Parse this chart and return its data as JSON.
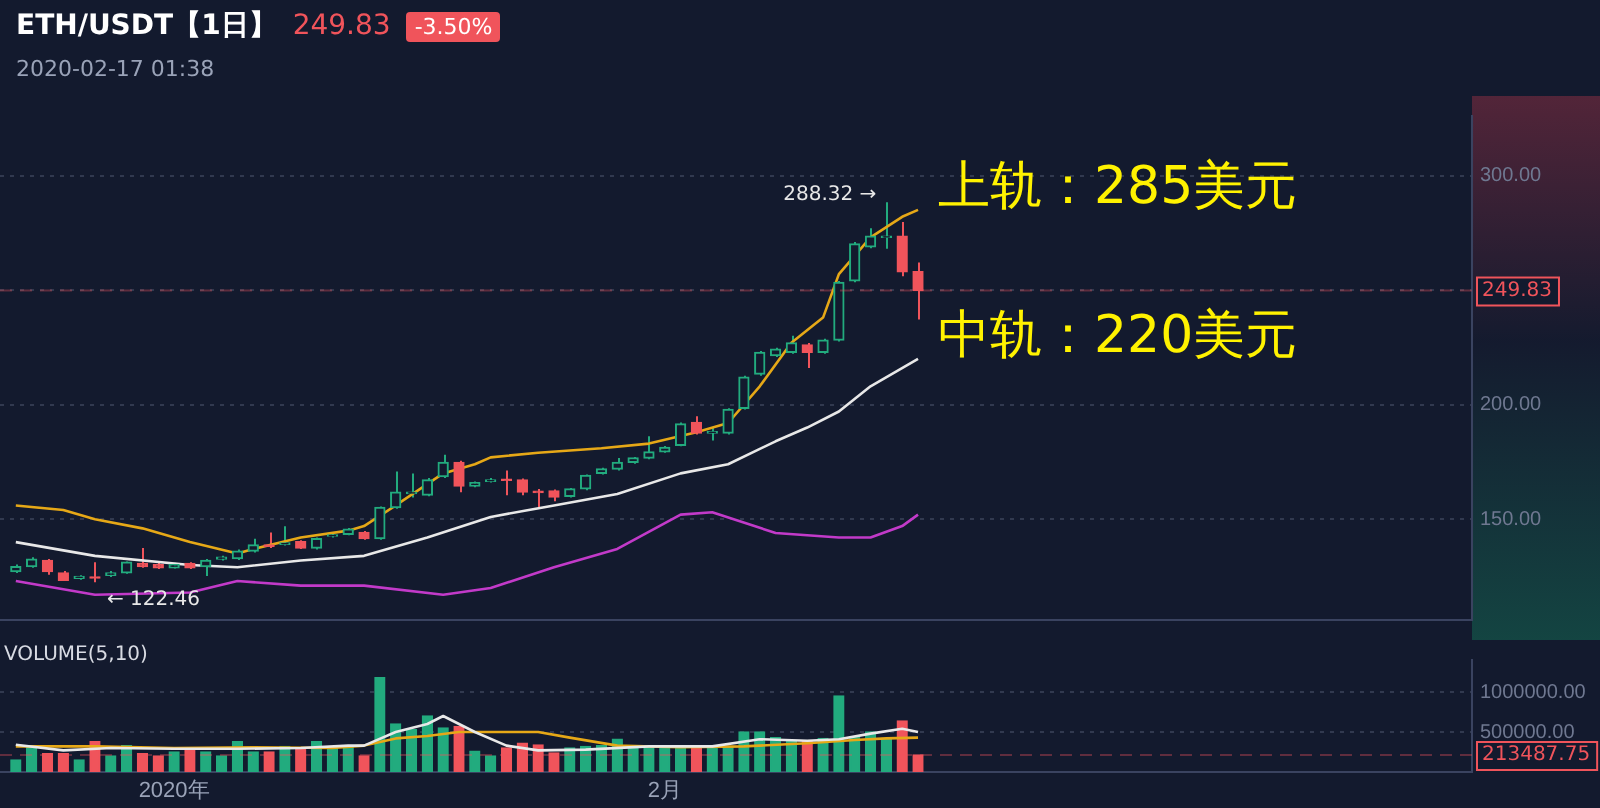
{
  "chart_data": [
    {
      "type": "candlestick",
      "title": "ETH/USDT【1日】",
      "subtitle": "2020-02-17 01:38",
      "x": [
        "2019-12-22",
        "2019-12-23",
        "2019-12-24",
        "2019-12-25",
        "2019-12-26",
        "2019-12-27",
        "2019-12-28",
        "2019-12-29",
        "2019-12-30",
        "2019-12-31",
        "2020-01-01",
        "2020-01-02",
        "2020-01-03",
        "2020-01-04",
        "2020-01-05",
        "2020-01-06",
        "2020-01-07",
        "2020-01-08",
        "2020-01-09",
        "2020-01-10",
        "2020-01-11",
        "2020-01-12",
        "2020-01-13",
        "2020-01-14",
        "2020-01-15",
        "2020-01-16",
        "2020-01-17",
        "2020-01-18",
        "2020-01-19",
        "2020-01-20",
        "2020-01-21",
        "2020-01-22",
        "2020-01-23",
        "2020-01-24",
        "2020-01-25",
        "2020-01-26",
        "2020-01-27",
        "2020-01-28",
        "2020-01-29",
        "2020-01-30",
        "2020-01-31",
        "2020-02-01",
        "2020-02-02",
        "2020-02-03",
        "2020-02-04",
        "2020-02-05",
        "2020-02-06",
        "2020-02-07",
        "2020-02-08",
        "2020-02-09",
        "2020-02-10",
        "2020-02-11",
        "2020-02-12",
        "2020-02-13",
        "2020-02-14",
        "2020-02-15",
        "2020-02-16",
        "2020-02-17"
      ],
      "ohlc": [
        [
          127.1,
          130.2,
          126.5,
          129.3
        ],
        [
          129.3,
          133.4,
          128.8,
          132.6
        ],
        [
          132,
          132.6,
          125.8,
          127.1
        ],
        [
          126.6,
          127.4,
          123,
          123.3
        ],
        [
          124.2,
          125.5,
          123.6,
          125
        ],
        [
          124.8,
          131.2,
          122.46,
          124.3
        ],
        [
          125.5,
          127.4,
          124.8,
          126.6
        ],
        [
          126.6,
          131.5,
          126.2,
          131.2
        ],
        [
          130.7,
          137.4,
          128.8,
          129.3
        ],
        [
          130.2,
          131,
          128.3,
          128.8
        ],
        [
          128.8,
          131,
          128.5,
          130.2
        ],
        [
          130.7,
          131.2,
          128.3,
          128.8
        ],
        [
          129.3,
          132.6,
          125.2,
          132
        ],
        [
          132.6,
          134,
          132,
          133.4
        ],
        [
          132.8,
          136.8,
          132.2,
          136.1
        ],
        [
          136.1,
          141.5,
          135.5,
          138.8
        ],
        [
          138.8,
          144.2,
          137.4,
          138.2
        ],
        [
          139,
          146.9,
          138.5,
          139.6
        ],
        [
          140.2,
          140.8,
          137,
          137.4
        ],
        [
          137.4,
          142,
          136.8,
          141.5
        ],
        [
          142.6,
          144,
          142,
          143.1
        ],
        [
          143.4,
          146.2,
          143,
          145.6
        ],
        [
          144.2,
          144.8,
          141,
          141.5
        ],
        [
          141.5,
          155.5,
          141,
          155.1
        ],
        [
          155.1,
          170.8,
          154.6,
          161.8
        ],
        [
          161.2,
          170,
          159.5,
          161.8
        ],
        [
          160.5,
          168,
          160,
          167.2
        ],
        [
          168.6,
          178.1,
          168,
          174.8
        ],
        [
          174.8,
          175.5,
          161.8,
          164.5
        ],
        [
          164.5,
          166.5,
          164,
          165.9
        ],
        [
          166.5,
          168,
          166,
          167.2
        ],
        [
          167.5,
          171.3,
          160.5,
          167
        ],
        [
          167.2,
          167.8,
          160.5,
          161.8
        ],
        [
          162.2,
          163.2,
          154.5,
          161.6
        ],
        [
          162.4,
          163,
          157.8,
          159.7
        ],
        [
          160,
          163.6,
          159.5,
          163.2
        ],
        [
          163.2,
          169.5,
          162.6,
          169.1
        ],
        [
          170,
          172.5,
          169.5,
          171.9
        ],
        [
          171.9,
          176.7,
          171.3,
          174.8
        ],
        [
          174.8,
          177.2,
          174.2,
          176.7
        ],
        [
          176.7,
          186.2,
          176.2,
          179.4
        ],
        [
          179.4,
          182,
          179,
          181.3
        ],
        [
          182.2,
          192.2,
          181.8,
          191.6
        ],
        [
          192.2,
          194.9,
          187,
          187.6
        ],
        [
          187.6,
          190.3,
          184.3,
          188.2
        ],
        [
          187.6,
          198.4,
          187,
          197.9
        ],
        [
          198.4,
          212.6,
          197.9,
          212
        ],
        [
          213.3,
          223.4,
          212.6,
          222.8
        ],
        [
          221.4,
          224.8,
          220.8,
          224.2
        ],
        [
          222.8,
          230.1,
          222.2,
          226.9
        ],
        [
          226.1,
          226.9,
          216,
          222.8
        ],
        [
          222.8,
          228.8,
          222.2,
          228.2
        ],
        [
          228.2,
          254,
          227.6,
          253.4
        ],
        [
          254,
          271,
          253.4,
          270.2
        ],
        [
          268.9,
          277,
          268.3,
          273.5
        ],
        [
          273,
          288.32,
          268,
          273.5
        ],
        [
          273.5,
          279.7,
          256.1,
          258
        ],
        [
          258,
          262.1,
          237.2,
          249.83
        ]
      ],
      "series": [
        {
          "type": "line",
          "color": "#e6a817",
          "x": [
            "2019-12-22",
            "2019-12-25",
            "2019-12-27",
            "2019-12-30",
            "2020-01-02",
            "2020-01-05",
            "2020-01-06",
            "2020-01-09",
            "2020-01-12",
            "2020-01-13",
            "2020-01-15",
            "2020-01-18",
            "2020-01-20",
            "2020-01-21",
            "2020-01-24",
            "2020-01-28",
            "2020-01-31",
            "2020-02-03",
            "2020-02-05",
            "2020-02-07",
            "2020-02-09",
            "2020-02-11",
            "2020-02-12",
            "2020-02-14",
            "2020-02-16",
            "2020-02-17"
          ],
          "values": [
            156,
            154,
            150,
            146,
            140,
            135,
            137,
            142,
            145,
            147,
            156,
            170,
            174,
            177,
            179,
            181,
            183,
            188,
            192,
            208,
            227,
            238,
            257,
            273,
            282,
            285
          ]
        },
        {
          "type": "line",
          "color": "#e8e8e8",
          "x": [
            "2019-12-22",
            "2019-12-27",
            "2020-01-02",
            "2020-01-05",
            "2020-01-09",
            "2020-01-13",
            "2020-01-17",
            "2020-01-21",
            "2020-01-25",
            "2020-01-29",
            "2020-02-02",
            "2020-02-05",
            "2020-02-08",
            "2020-02-10",
            "2020-02-12",
            "2020-02-14",
            "2020-02-17"
          ],
          "values": [
            140,
            134,
            130,
            129,
            132,
            134,
            142,
            151,
            156,
            161,
            170,
            174,
            184,
            190,
            197,
            208,
            220
          ]
        },
        {
          "type": "line",
          "color": "#c23ac9",
          "x": [
            "2019-12-22",
            "2019-12-27",
            "2020-01-02",
            "2020-01-05",
            "2020-01-09",
            "2020-01-13",
            "2020-01-18",
            "2020-01-21",
            "2020-01-25",
            "2020-01-29",
            "2020-02-02",
            "2020-02-04",
            "2020-02-08",
            "2020-02-12",
            "2020-02-14",
            "2020-02-16",
            "2020-02-17"
          ],
          "values": [
            123,
            117,
            118,
            123,
            121,
            121,
            117,
            120,
            129,
            137,
            152,
            153,
            144,
            142,
            142,
            147,
            152
          ]
        }
      ],
      "xlim": [
        "2019-12-21",
        "2020-03-23"
      ],
      "ylim": [
        106,
        326
      ],
      "yticks": [
        {
          "value": 150,
          "label": "150.00"
        },
        {
          "value": 200,
          "label": "200.00"
        },
        {
          "value": 250,
          "label": null
        },
        {
          "value": 300,
          "label": "300.00"
        }
      ],
      "grid": "y",
      "tick_labels": "y",
      "legend": false,
      "ref_lines": [
        {
          "axis": "y",
          "value": 249.83,
          "label": "249.83",
          "color": "#f0545b",
          "line_style": "dashed"
        }
      ],
      "annotations": [
        "249.83",
        "-3.50%",
        {
          "text": "上轨：285美元",
          "x": "2020-02-17",
          "y": 285
        },
        {
          "text": "中轨：220美元",
          "x": "2020-02-17",
          "y": 220
        },
        {
          "text": "288.32 →",
          "x": "2020-02-15",
          "y": 288.32
        },
        {
          "text": "← 122.46",
          "x": "2019-12-27",
          "y": 122.46
        }
      ]
    },
    {
      "type": "bar",
      "title": "VOLUME(5,10)",
      "x": [
        "2019-12-22",
        "2019-12-23",
        "2019-12-24",
        "2019-12-25",
        "2019-12-26",
        "2019-12-27",
        "2019-12-28",
        "2019-12-29",
        "2019-12-30",
        "2019-12-31",
        "2020-01-01",
        "2020-01-02",
        "2020-01-03",
        "2020-01-04",
        "2020-01-05",
        "2020-01-06",
        "2020-01-07",
        "2020-01-08",
        "2020-01-09",
        "2020-01-10",
        "2020-01-11",
        "2020-01-12",
        "2020-01-13",
        "2020-01-14",
        "2020-01-15",
        "2020-01-16",
        "2020-01-17",
        "2020-01-18",
        "2020-01-19",
        "2020-01-20",
        "2020-01-21",
        "2020-01-22",
        "2020-01-23",
        "2020-01-24",
        "2020-01-25",
        "2020-01-26",
        "2020-01-27",
        "2020-01-28",
        "2020-01-29",
        "2020-01-30",
        "2020-01-31",
        "2020-02-01",
        "2020-02-02",
        "2020-02-03",
        "2020-02-04",
        "2020-02-05",
        "2020-02-06",
        "2020-02-07",
        "2020-02-08",
        "2020-02-09",
        "2020-02-10",
        "2020-02-11",
        "2020-02-12",
        "2020-02-13",
        "2020-02-14",
        "2020-02-15",
        "2020-02-16",
        "2020-02-17"
      ],
      "series": [
        {
          "type": "bar",
          "values": [
            150000,
            330000,
            230000,
            230000,
            150000,
            380000,
            200000,
            330000,
            230000,
            200000,
            250000,
            290000,
            250000,
            200000,
            380000,
            250000,
            250000,
            320000,
            290000,
            380000,
            300000,
            320000,
            200000,
            1180000,
            600000,
            530000,
            700000,
            550000,
            570000,
            260000,
            200000,
            300000,
            360000,
            340000,
            240000,
            300000,
            320000,
            330000,
            410000,
            300000,
            300000,
            320000,
            330000,
            300000,
            330000,
            320000,
            500000,
            500000,
            430000,
            390000,
            390000,
            420000,
            950000,
            440000,
            500000,
            420000,
            640000,
            213487.75
          ],
          "colors": [
            "#22ab7e",
            "#22ab7e",
            "#f0545b",
            "#f0545b",
            "#22ab7e",
            "#f0545b",
            "#22ab7e",
            "#22ab7e",
            "#f0545b",
            "#f0545b",
            "#22ab7e",
            "#f0545b",
            "#22ab7e",
            "#22ab7e",
            "#22ab7e",
            "#22ab7e",
            "#f0545b",
            "#22ab7e",
            "#f0545b",
            "#22ab7e",
            "#22ab7e",
            "#22ab7e",
            "#f0545b",
            "#22ab7e",
            "#22ab7e",
            "#22ab7e",
            "#22ab7e",
            "#22ab7e",
            "#f0545b",
            "#22ab7e",
            "#22ab7e",
            "#f0545b",
            "#f0545b",
            "#f0545b",
            "#f0545b",
            "#22ab7e",
            "#22ab7e",
            "#22ab7e",
            "#22ab7e",
            "#22ab7e",
            "#22ab7e",
            "#22ab7e",
            "#22ab7e",
            "#f0545b",
            "#22ab7e",
            "#22ab7e",
            "#22ab7e",
            "#22ab7e",
            "#22ab7e",
            "#22ab7e",
            "#f0545b",
            "#22ab7e",
            "#22ab7e",
            "#22ab7e",
            "#22ab7e",
            "#22ab7e",
            "#f0545b",
            "#f0545b"
          ]
        },
        {
          "type": "line",
          "color": "#e8e8e8",
          "x": [
            "2019-12-22",
            "2019-12-25",
            "2019-12-28",
            "2020-01-01",
            "2020-01-05",
            "2020-01-09",
            "2020-01-12",
            "2020-01-13",
            "2020-01-15",
            "2020-01-17",
            "2020-01-18",
            "2020-01-20",
            "2020-01-22",
            "2020-01-24",
            "2020-01-27",
            "2020-01-31",
            "2020-02-04",
            "2020-02-07",
            "2020-02-10",
            "2020-02-12",
            "2020-02-14",
            "2020-02-16",
            "2020-02-17"
          ],
          "values": [
            340000,
            270000,
            300000,
            290000,
            290000,
            300000,
            330000,
            330000,
            500000,
            600000,
            700000,
            500000,
            330000,
            270000,
            280000,
            320000,
            320000,
            410000,
            390000,
            410000,
            480000,
            540000,
            500000
          ]
        },
        {
          "type": "line",
          "color": "#e6a817",
          "x": [
            "2019-12-22",
            "2019-12-27",
            "2020-01-01",
            "2020-01-06",
            "2020-01-11",
            "2020-01-13",
            "2020-01-15",
            "2020-01-17",
            "2020-01-19",
            "2020-01-22",
            "2020-01-24",
            "2020-01-26",
            "2020-01-29",
            "2020-02-02",
            "2020-02-06",
            "2020-02-10",
            "2020-02-13",
            "2020-02-15",
            "2020-02-17"
          ],
          "values": [
            320000,
            320000,
            300000,
            310000,
            300000,
            330000,
            420000,
            450000,
            500000,
            500000,
            500000,
            430000,
            330000,
            310000,
            320000,
            360000,
            400000,
            420000,
            430000
          ]
        }
      ],
      "xlim": [
        "2019-12-21",
        "2020-03-23"
      ],
      "xticks": [
        {
          "value": "2020-01-01",
          "label": "2020年"
        },
        {
          "value": "2020-02-01",
          "label": "2月"
        }
      ],
      "ylim": [
        0,
        1400000
      ],
      "yticks": [
        {
          "value": 500000,
          "label": "500000.00"
        },
        {
          "value": 1000000,
          "label": "1000000.00"
        }
      ],
      "grid": "y",
      "legend": false,
      "ref_lines": [
        {
          "axis": "y",
          "value": 213487.75,
          "label": "213487.75",
          "color": "#f0545b",
          "line_style": "dashed"
        }
      ]
    }
  ]
}
